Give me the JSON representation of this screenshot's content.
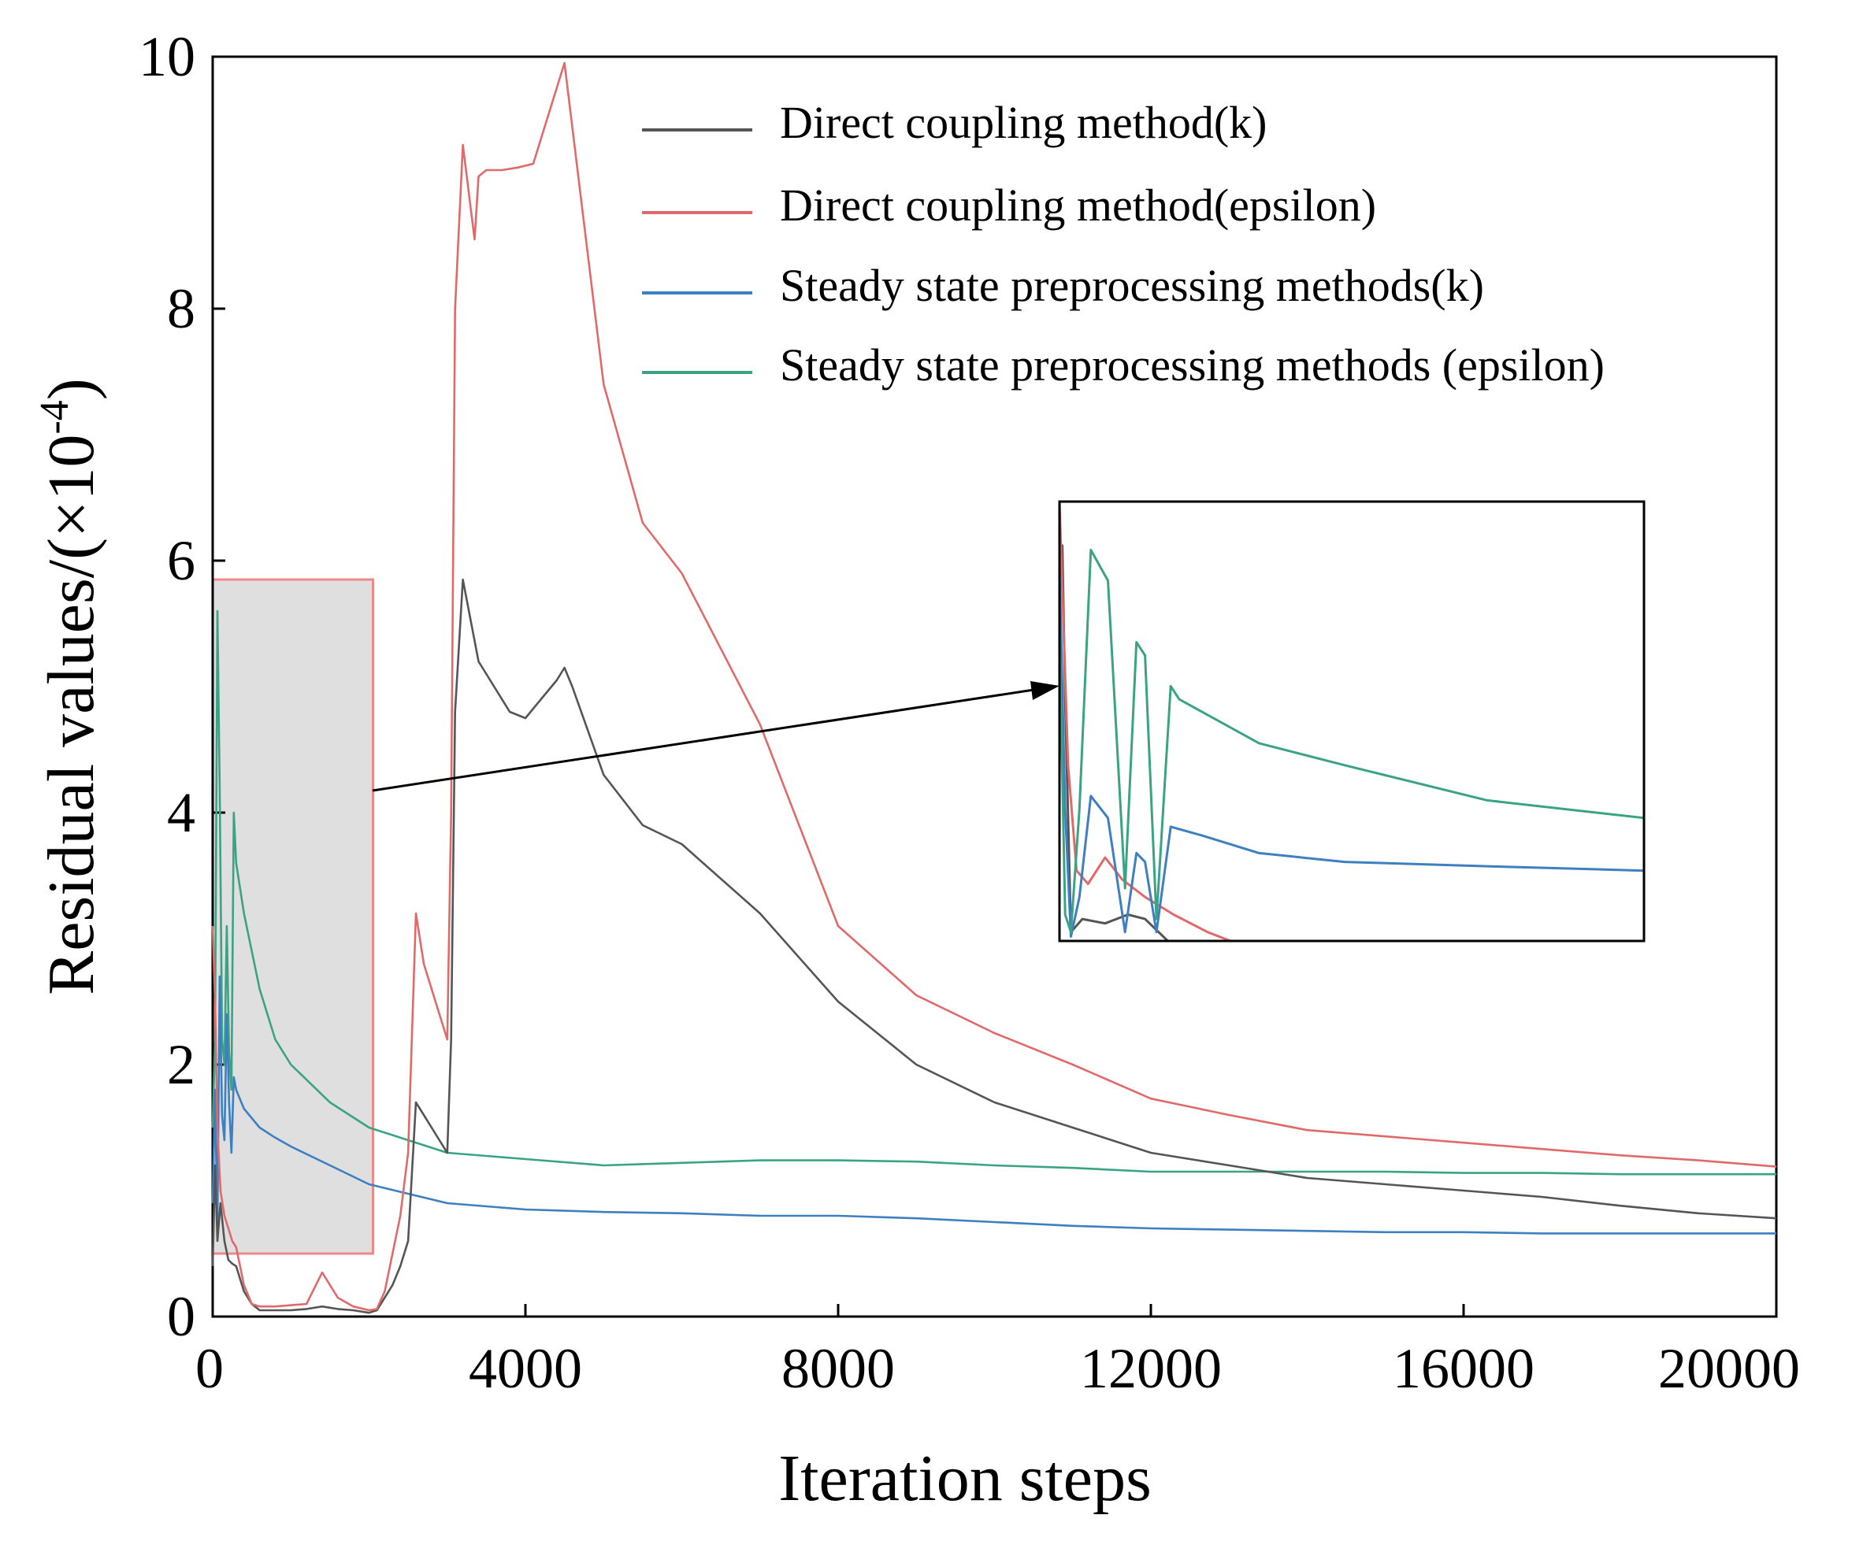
{
  "chart_data": {
    "type": "line",
    "title": "",
    "xlabel": "Iteration steps",
    "ylabel": "Residual values/(×10",
    "ylabel_exponent": "-4",
    "ylabel_suffix": ")",
    "xlim": [
      0,
      20000
    ],
    "ylim": [
      0,
      10
    ],
    "xticks": [
      0,
      4000,
      8000,
      12000,
      16000,
      20000
    ],
    "xtick_labels": [
      "0",
      "4000",
      "8000",
      "12000",
      "16000",
      "20000"
    ],
    "yticks": [
      0,
      2,
      4,
      6,
      8,
      10
    ],
    "ytick_labels": [
      "0",
      "2",
      "4",
      "6",
      "8",
      "10"
    ],
    "grid": false,
    "legend_position": "top-right",
    "series": [
      {
        "name": "Direct coupling method(k)",
        "color": "#555555",
        "x": [
          0,
          30,
          60,
          100,
          150,
          200,
          250,
          300,
          400,
          500,
          600,
          800,
          1000,
          1200,
          1400,
          1600,
          1800,
          2000,
          2100,
          2200,
          2300,
          2400,
          2500,
          2600,
          2700,
          2800,
          2900,
          3000,
          3050,
          3100,
          3200,
          3400,
          3600,
          3800,
          4000,
          4200,
          4400,
          4500,
          4600,
          5000,
          5500,
          6000,
          7000,
          8000,
          9000,
          10000,
          11000,
          12000,
          13000,
          14000,
          15000,
          16000,
          17000,
          18000,
          19000,
          20000
        ],
        "values": [
          0.4,
          1.2,
          0.6,
          0.9,
          0.6,
          0.45,
          0.42,
          0.4,
          0.2,
          0.1,
          0.05,
          0.05,
          0.05,
          0.06,
          0.08,
          0.06,
          0.05,
          0.03,
          0.05,
          0.15,
          0.25,
          0.4,
          0.6,
          1.7,
          1.6,
          1.5,
          1.4,
          1.3,
          2.2,
          4.8,
          5.85,
          5.2,
          5.0,
          4.8,
          4.75,
          4.9,
          5.05,
          5.15,
          5.0,
          4.3,
          3.9,
          3.75,
          3.2,
          2.5,
          2.0,
          1.7,
          1.5,
          1.3,
          1.2,
          1.1,
          1.05,
          1.0,
          0.95,
          0.88,
          0.82,
          0.78
        ]
      },
      {
        "name": "Direct coupling method(epsilon)",
        "color": "#e06a6a",
        "x": [
          0,
          30,
          60,
          100,
          150,
          200,
          250,
          300,
          400,
          500,
          600,
          800,
          1000,
          1200,
          1400,
          1600,
          1800,
          2000,
          2100,
          2200,
          2300,
          2400,
          2500,
          2600,
          2700,
          2800,
          2900,
          3000,
          3050,
          3100,
          3200,
          3300,
          3350,
          3400,
          3500,
          3700,
          3900,
          4100,
          4500,
          5000,
          5500,
          6000,
          7000,
          8000,
          9000,
          10000,
          11000,
          12000,
          13000,
          14000,
          15000,
          16000,
          17000,
          18000,
          19000,
          20000
        ],
        "values": [
          3.1,
          2.5,
          1.5,
          1.0,
          0.8,
          0.7,
          0.6,
          0.55,
          0.25,
          0.1,
          0.08,
          0.08,
          0.09,
          0.1,
          0.35,
          0.15,
          0.08,
          0.05,
          0.06,
          0.2,
          0.5,
          0.8,
          1.3,
          3.2,
          2.8,
          2.6,
          2.4,
          2.2,
          4.0,
          8.0,
          9.3,
          8.8,
          8.55,
          9.05,
          9.1,
          9.1,
          9.12,
          9.15,
          9.95,
          7.4,
          6.3,
          5.9,
          4.7,
          3.1,
          2.55,
          2.25,
          2.0,
          1.73,
          1.6,
          1.48,
          1.43,
          1.38,
          1.33,
          1.28,
          1.24,
          1.19
        ]
      },
      {
        "name": "Steady state preprocessing methods(k)",
        "color": "#3d7fc1",
        "x": [
          0,
          30,
          60,
          90,
          120,
          150,
          180,
          210,
          240,
          270,
          300,
          400,
          600,
          800,
          1000,
          1500,
          2000,
          3000,
          4000,
          5000,
          6000,
          7000,
          8000,
          9000,
          10000,
          11000,
          12000,
          13000,
          14000,
          15000,
          16000,
          17000,
          18000,
          19000,
          20000
        ],
        "values": [
          0.9,
          1.8,
          0.7,
          2.7,
          1.6,
          1.4,
          2.4,
          1.7,
          1.3,
          1.9,
          1.8,
          1.65,
          1.5,
          1.42,
          1.35,
          1.2,
          1.05,
          0.9,
          0.85,
          0.83,
          0.82,
          0.8,
          0.8,
          0.78,
          0.75,
          0.72,
          0.7,
          0.69,
          0.68,
          0.67,
          0.67,
          0.66,
          0.66,
          0.66,
          0.66
        ]
      },
      {
        "name": "Steady state preprocessing methods (epsilon)",
        "color": "#3aa383",
        "x": [
          0,
          30,
          60,
          90,
          120,
          150,
          180,
          210,
          240,
          270,
          300,
          400,
          600,
          800,
          1000,
          1500,
          2000,
          3000,
          4000,
          5000,
          6000,
          7000,
          8000,
          9000,
          10000,
          11000,
          12000,
          13000,
          14000,
          15000,
          16000,
          17000,
          18000,
          19000,
          20000
        ],
        "values": [
          1.5,
          2.2,
          5.6,
          4.2,
          2.2,
          2.0,
          3.1,
          2.1,
          1.8,
          4.0,
          3.6,
          3.2,
          2.6,
          2.2,
          2.0,
          1.7,
          1.5,
          1.3,
          1.25,
          1.2,
          1.22,
          1.24,
          1.24,
          1.23,
          1.2,
          1.18,
          1.15,
          1.15,
          1.15,
          1.15,
          1.14,
          1.14,
          1.13,
          1.13,
          1.13
        ]
      }
    ],
    "highlight_region": {
      "x": [
        0,
        2050
      ],
      "y": [
        0.5,
        5.85
      ]
    },
    "inset": {
      "description": "zoomed view of highlighted region",
      "xlim": [
        0,
        2050
      ],
      "ylim": [
        0,
        1
      ],
      "series_curves": [
        {
          "name": "Direct coupling method(k)",
          "color": "#555555",
          "points": [
            [
              0,
              0.85
            ],
            [
              10,
              0.9
            ],
            [
              20,
              0.55
            ],
            [
              40,
              0.02
            ],
            [
              80,
              0.05
            ],
            [
              160,
              0.04
            ],
            [
              240,
              0.06
            ],
            [
              300,
              0.05
            ],
            [
              380,
              0.0
            ]
          ]
        },
        {
          "name": "Direct coupling method(epsilon)",
          "color": "#e06a6a",
          "points": [
            [
              0,
              1.0
            ],
            [
              30,
              0.4
            ],
            [
              60,
              0.16
            ],
            [
              100,
              0.13
            ],
            [
              160,
              0.19
            ],
            [
              220,
              0.14
            ],
            [
              300,
              0.1
            ],
            [
              400,
              0.06
            ],
            [
              520,
              0.02
            ],
            [
              600,
              0.0
            ]
          ]
        },
        {
          "name": "Steady state preprocessing methods(k)",
          "color": "#3d7fc1",
          "points": [
            [
              0,
              0.85
            ],
            [
              20,
              0.3
            ],
            [
              40,
              0.01
            ],
            [
              70,
              0.1
            ],
            [
              110,
              0.33
            ],
            [
              170,
              0.28
            ],
            [
              230,
              0.02
            ],
            [
              270,
              0.2
            ],
            [
              300,
              0.18
            ],
            [
              340,
              0.02
            ],
            [
              390,
              0.26
            ],
            [
              500,
              0.24
            ],
            [
              700,
              0.2
            ],
            [
              1000,
              0.18
            ],
            [
              1500,
              0.17
            ],
            [
              2050,
              0.16
            ]
          ]
        },
        {
          "name": "Steady state preprocessing methods (epsilon)",
          "color": "#3aa383",
          "points": [
            [
              0,
              0.7
            ],
            [
              20,
              0.06
            ],
            [
              40,
              0.02
            ],
            [
              70,
              0.3
            ],
            [
              110,
              0.89
            ],
            [
              170,
              0.82
            ],
            [
              230,
              0.12
            ],
            [
              270,
              0.68
            ],
            [
              300,
              0.65
            ],
            [
              340,
              0.05
            ],
            [
              390,
              0.58
            ],
            [
              420,
              0.55
            ],
            [
              700,
              0.45
            ],
            [
              1000,
              0.4
            ],
            [
              1500,
              0.32
            ],
            [
              2050,
              0.28
            ]
          ]
        }
      ]
    }
  }
}
